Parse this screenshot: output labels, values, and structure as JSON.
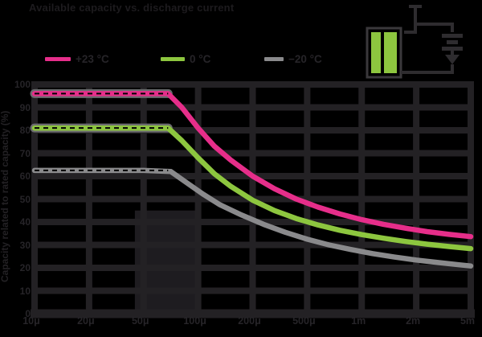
{
  "colors": {
    "background": "#000000",
    "grid": "#232124",
    "text_dark": "#262428",
    "halo": "#6b6b6e",
    "band": "#1e1c20",
    "pink": "#e62e8a",
    "green": "#8dc63f",
    "gray": "#8a8a8c",
    "icon_line": "#2e2c2f"
  },
  "icon": {
    "name": "battery-discharge-circuit",
    "bar_color": "#8dc63f"
  },
  "chart_data": {
    "type": "line",
    "title": "Available capacity vs. discharge current",
    "xlabel": "",
    "ylabel": "Capacity related to rated capacity (%)",
    "x_scale": "log-1-2-5",
    "x_tick_labels": [
      "10μ",
      "20μ",
      "50μ",
      "100μ",
      "200μ",
      "500μ",
      "1m",
      "2m",
      "5m"
    ],
    "y_tick_labels": [
      "100",
      "90",
      "80",
      "70",
      "60",
      "50",
      "40",
      "30",
      "20",
      "10",
      "0"
    ],
    "ylim": [
      0,
      100
    ],
    "grid": "both",
    "legend_position": "top",
    "series": [
      {
        "name": "+23 °C",
        "color": "#e62e8a",
        "halo_on_flat": true,
        "dashed_reference_on_flat": true,
        "flat_value_pct": 96,
        "points": [
          [
            0,
            96
          ],
          [
            0.5,
            96
          ],
          [
            1,
            96
          ],
          [
            1.5,
            96
          ],
          [
            2,
            96
          ],
          [
            2.45,
            96
          ],
          [
            2.7,
            90
          ],
          [
            3.0,
            81
          ],
          [
            3.3,
            73
          ],
          [
            3.6,
            67
          ],
          [
            4.0,
            60
          ],
          [
            4.4,
            54.5
          ],
          [
            4.8,
            50
          ],
          [
            5.2,
            46.5
          ],
          [
            5.6,
            43.5
          ],
          [
            6.0,
            41
          ],
          [
            6.4,
            39
          ],
          [
            6.8,
            37.3
          ],
          [
            7.2,
            35.8
          ],
          [
            7.6,
            34.6
          ],
          [
            8,
            33.6
          ]
        ]
      },
      {
        "name": "0 °C",
        "color": "#8dc63f",
        "halo_on_flat": true,
        "dashed_reference_on_flat": true,
        "flat_value_pct": 81,
        "points": [
          [
            0,
            81
          ],
          [
            0.5,
            81
          ],
          [
            1,
            81
          ],
          [
            1.5,
            81
          ],
          [
            2,
            81
          ],
          [
            2.45,
            81
          ],
          [
            2.7,
            75.5
          ],
          [
            3.0,
            68
          ],
          [
            3.3,
            61
          ],
          [
            3.6,
            55.5
          ],
          [
            4.0,
            49.5
          ],
          [
            4.4,
            45
          ],
          [
            4.8,
            41.5
          ],
          [
            5.2,
            38.7
          ],
          [
            5.6,
            36.4
          ],
          [
            6.0,
            34.5
          ],
          [
            6.4,
            32.9
          ],
          [
            6.8,
            31.5
          ],
          [
            7.2,
            30.3
          ],
          [
            7.6,
            29.3
          ],
          [
            8,
            28.4
          ]
        ]
      },
      {
        "name": "−20 °C",
        "color": "#8a8a8c",
        "halo_on_flat": false,
        "dashed_reference_on_flat": true,
        "flat_value_pct": 62.5,
        "points": [
          [
            0,
            62.5
          ],
          [
            0.5,
            62.5
          ],
          [
            1,
            62.5
          ],
          [
            1.5,
            62.5
          ],
          [
            2,
            62.5
          ],
          [
            2.5,
            62
          ],
          [
            2.8,
            57
          ],
          [
            3.1,
            52
          ],
          [
            3.4,
            47.5
          ],
          [
            3.8,
            43
          ],
          [
            4.2,
            39
          ],
          [
            4.6,
            35.5
          ],
          [
            5.0,
            32.5
          ],
          [
            5.4,
            30
          ],
          [
            5.8,
            28
          ],
          [
            6.2,
            26.2
          ],
          [
            6.6,
            24.7
          ],
          [
            7.0,
            23.4
          ],
          [
            7.4,
            22.3
          ],
          [
            7.8,
            21.3
          ],
          [
            8,
            20.8
          ]
        ]
      }
    ],
    "annotations": {
      "shaded_band": {
        "x_from_tick_index": 1.84,
        "x_to_tick_index": 2.95,
        "y_from_pct": 0,
        "y_to_pct": 45
      }
    }
  }
}
